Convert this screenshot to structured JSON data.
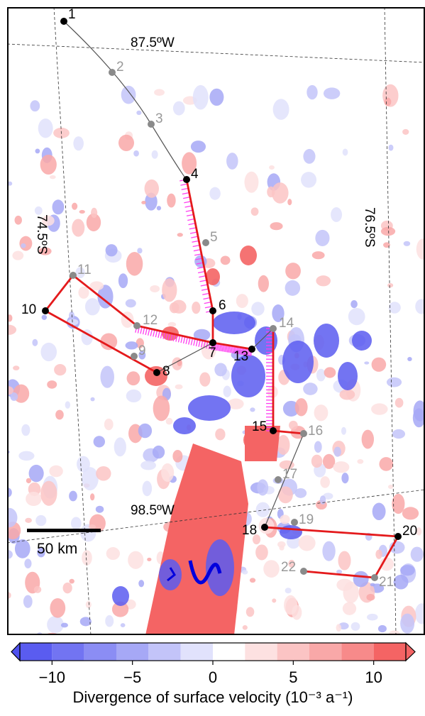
{
  "map": {
    "graticule_labels": {
      "lon_top": "87.5ºW",
      "lon_bottom": "98.5ºW",
      "lat_left": "74.5ºS",
      "lat_right": "76.5ºS"
    },
    "scale_bar": {
      "label": "50 km",
      "length_km": 50
    },
    "colors": {
      "background": "#ffffff",
      "route_red": "#e41a1c",
      "route_gray": "#555555",
      "point_black": "#000000",
      "point_gray": "#8a8a8a",
      "label_gray": "#999999",
      "flux_gate_magenta": "#ff3cf0",
      "grounding_line": "#0000dd"
    },
    "waypoints": [
      {
        "id": "1",
        "style": "black"
      },
      {
        "id": "2",
        "style": "gray"
      },
      {
        "id": "3",
        "style": "gray"
      },
      {
        "id": "4",
        "style": "black"
      },
      {
        "id": "5",
        "style": "gray"
      },
      {
        "id": "6",
        "style": "black"
      },
      {
        "id": "7",
        "style": "black"
      },
      {
        "id": "8",
        "style": "black"
      },
      {
        "id": "9",
        "style": "gray"
      },
      {
        "id": "10",
        "style": "black"
      },
      {
        "id": "11",
        "style": "gray"
      },
      {
        "id": "12",
        "style": "gray"
      },
      {
        "id": "13",
        "style": "black"
      },
      {
        "id": "14",
        "style": "gray"
      },
      {
        "id": "15",
        "style": "black"
      },
      {
        "id": "16",
        "style": "gray"
      },
      {
        "id": "17",
        "style": "gray"
      },
      {
        "id": "18",
        "style": "black"
      },
      {
        "id": "19",
        "style": "gray"
      },
      {
        "id": "20",
        "style": "black"
      },
      {
        "id": "21",
        "style": "gray"
      },
      {
        "id": "22",
        "style": "gray"
      }
    ],
    "route_segments": [
      {
        "from": "1",
        "to": "4",
        "color": "gray"
      },
      {
        "from": "4",
        "to": "6",
        "color": "red"
      },
      {
        "from": "6",
        "to": "7",
        "color": "red"
      },
      {
        "from": "7",
        "to": "12",
        "color": "red"
      },
      {
        "from": "12",
        "to": "11",
        "color": "red"
      },
      {
        "from": "11",
        "to": "10",
        "color": "red"
      },
      {
        "from": "10",
        "to": "8",
        "color": "red"
      },
      {
        "from": "8",
        "to": "7",
        "color": "gray"
      },
      {
        "from": "7",
        "to": "13",
        "color": "red"
      },
      {
        "from": "13",
        "to": "14",
        "color": "gray"
      },
      {
        "from": "14",
        "to": "15",
        "color": "red"
      },
      {
        "from": "15",
        "to": "16",
        "color": "red"
      },
      {
        "from": "16",
        "to": "18",
        "color": "gray"
      },
      {
        "from": "18",
        "to": "20",
        "color": "red"
      },
      {
        "from": "20",
        "to": "21",
        "color": "red"
      },
      {
        "from": "21",
        "to": "22",
        "color": "red"
      }
    ]
  },
  "colorbar": {
    "title": "Divergence of surface velocity (10⁻³ a⁻¹)",
    "ticks": [
      "−10",
      "−5",
      "0",
      "5",
      "10"
    ],
    "tick_values": [
      -10,
      -5,
      0,
      5,
      10
    ],
    "range": [
      -12,
      12
    ],
    "step": 2,
    "colors": [
      "#5a5cf0",
      "#7274f2",
      "#8b8df4",
      "#a6a8f6",
      "#c3c4f9",
      "#e1e2fc",
      "#ffffff",
      "#fde1e1",
      "#fbc4c4",
      "#f9a8a8",
      "#f78a8a",
      "#f46464"
    ]
  }
}
